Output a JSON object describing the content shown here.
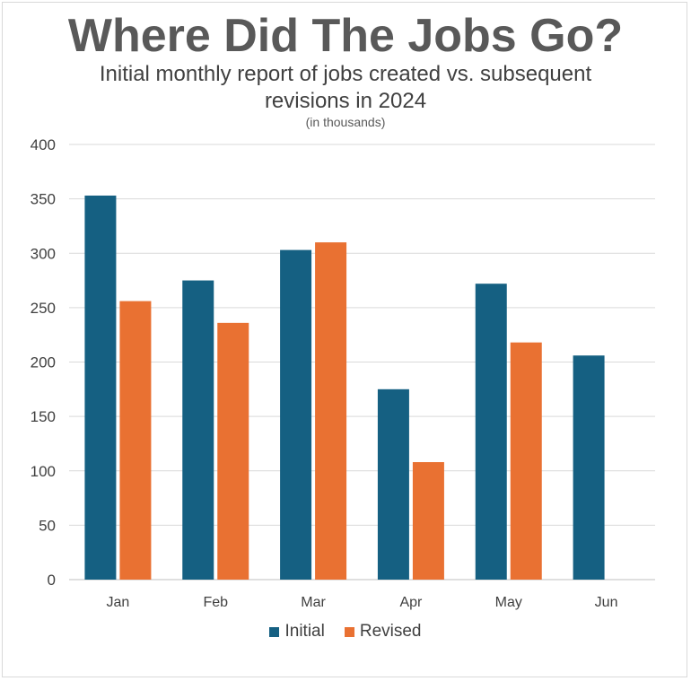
{
  "chart_data": {
    "type": "bar",
    "title": "Where Did The Jobs Go?",
    "subtitle": "Initial monthly report of jobs created vs. subsequent\nrevisions in 2024",
    "note": "(in thousands)",
    "categories": [
      "Jan",
      "Feb",
      "Mar",
      "Apr",
      "May",
      "Jun"
    ],
    "series": [
      {
        "name": "Initial",
        "color": "#156082",
        "values": [
          353,
          275,
          303,
          175,
          272,
          206
        ]
      },
      {
        "name": "Revised",
        "color": "#E97132",
        "values": [
          256,
          236,
          310,
          108,
          218,
          null
        ]
      }
    ],
    "xlabel": "",
    "ylabel": "",
    "ylim": [
      0,
      400
    ],
    "yticks": [
      0,
      50,
      100,
      150,
      200,
      250,
      300,
      350,
      400
    ],
    "grid": true,
    "legend": "bottom"
  }
}
